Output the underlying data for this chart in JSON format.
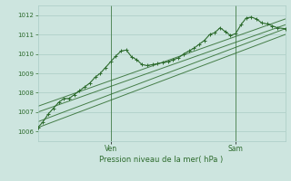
{
  "title": "Pression niveau de la mer( hPa )",
  "bg_color": "#cde5df",
  "grid_color": "#aaccc5",
  "line_color": "#2d6b2d",
  "ylim": [
    1005.5,
    1012.5
  ],
  "yticks": [
    1006,
    1007,
    1008,
    1009,
    1010,
    1011,
    1012
  ],
  "xlim": [
    0,
    95
  ],
  "ven_x": 28,
  "sam_x": 76,
  "straight_line1": [
    [
      0,
      1006.2
    ],
    [
      95,
      1011.0
    ]
  ],
  "straight_line2": [
    [
      0,
      1006.5
    ],
    [
      95,
      1011.3
    ]
  ],
  "straight_line3": [
    [
      0,
      1007.0
    ],
    [
      95,
      1011.5
    ]
  ],
  "straight_line4": [
    [
      0,
      1007.3
    ],
    [
      95,
      1011.8
    ]
  ],
  "wavy_line": [
    [
      0,
      1006.2
    ],
    [
      2,
      1006.5
    ],
    [
      4,
      1006.9
    ],
    [
      6,
      1007.2
    ],
    [
      8,
      1007.5
    ],
    [
      10,
      1007.7
    ],
    [
      12,
      1007.7
    ],
    [
      14,
      1007.9
    ],
    [
      16,
      1008.1
    ],
    [
      18,
      1008.3
    ],
    [
      20,
      1008.5
    ],
    [
      22,
      1008.8
    ],
    [
      24,
      1009.0
    ],
    [
      26,
      1009.3
    ],
    [
      28,
      1009.6
    ],
    [
      30,
      1009.9
    ],
    [
      32,
      1010.15
    ],
    [
      34,
      1010.2
    ],
    [
      36,
      1009.85
    ],
    [
      38,
      1009.7
    ],
    [
      40,
      1009.45
    ],
    [
      42,
      1009.4
    ],
    [
      44,
      1009.45
    ],
    [
      46,
      1009.5
    ],
    [
      48,
      1009.55
    ],
    [
      50,
      1009.6
    ],
    [
      52,
      1009.7
    ],
    [
      54,
      1009.8
    ],
    [
      56,
      1010.0
    ],
    [
      58,
      1010.15
    ],
    [
      60,
      1010.3
    ],
    [
      62,
      1010.5
    ],
    [
      64,
      1010.7
    ],
    [
      66,
      1011.0
    ],
    [
      68,
      1011.1
    ],
    [
      70,
      1011.35
    ],
    [
      72,
      1011.15
    ],
    [
      74,
      1010.95
    ],
    [
      76,
      1011.05
    ],
    [
      78,
      1011.5
    ],
    [
      80,
      1011.85
    ],
    [
      82,
      1011.9
    ],
    [
      84,
      1011.8
    ],
    [
      86,
      1011.6
    ],
    [
      88,
      1011.55
    ],
    [
      90,
      1011.45
    ],
    [
      92,
      1011.35
    ],
    [
      95,
      1011.3
    ]
  ]
}
